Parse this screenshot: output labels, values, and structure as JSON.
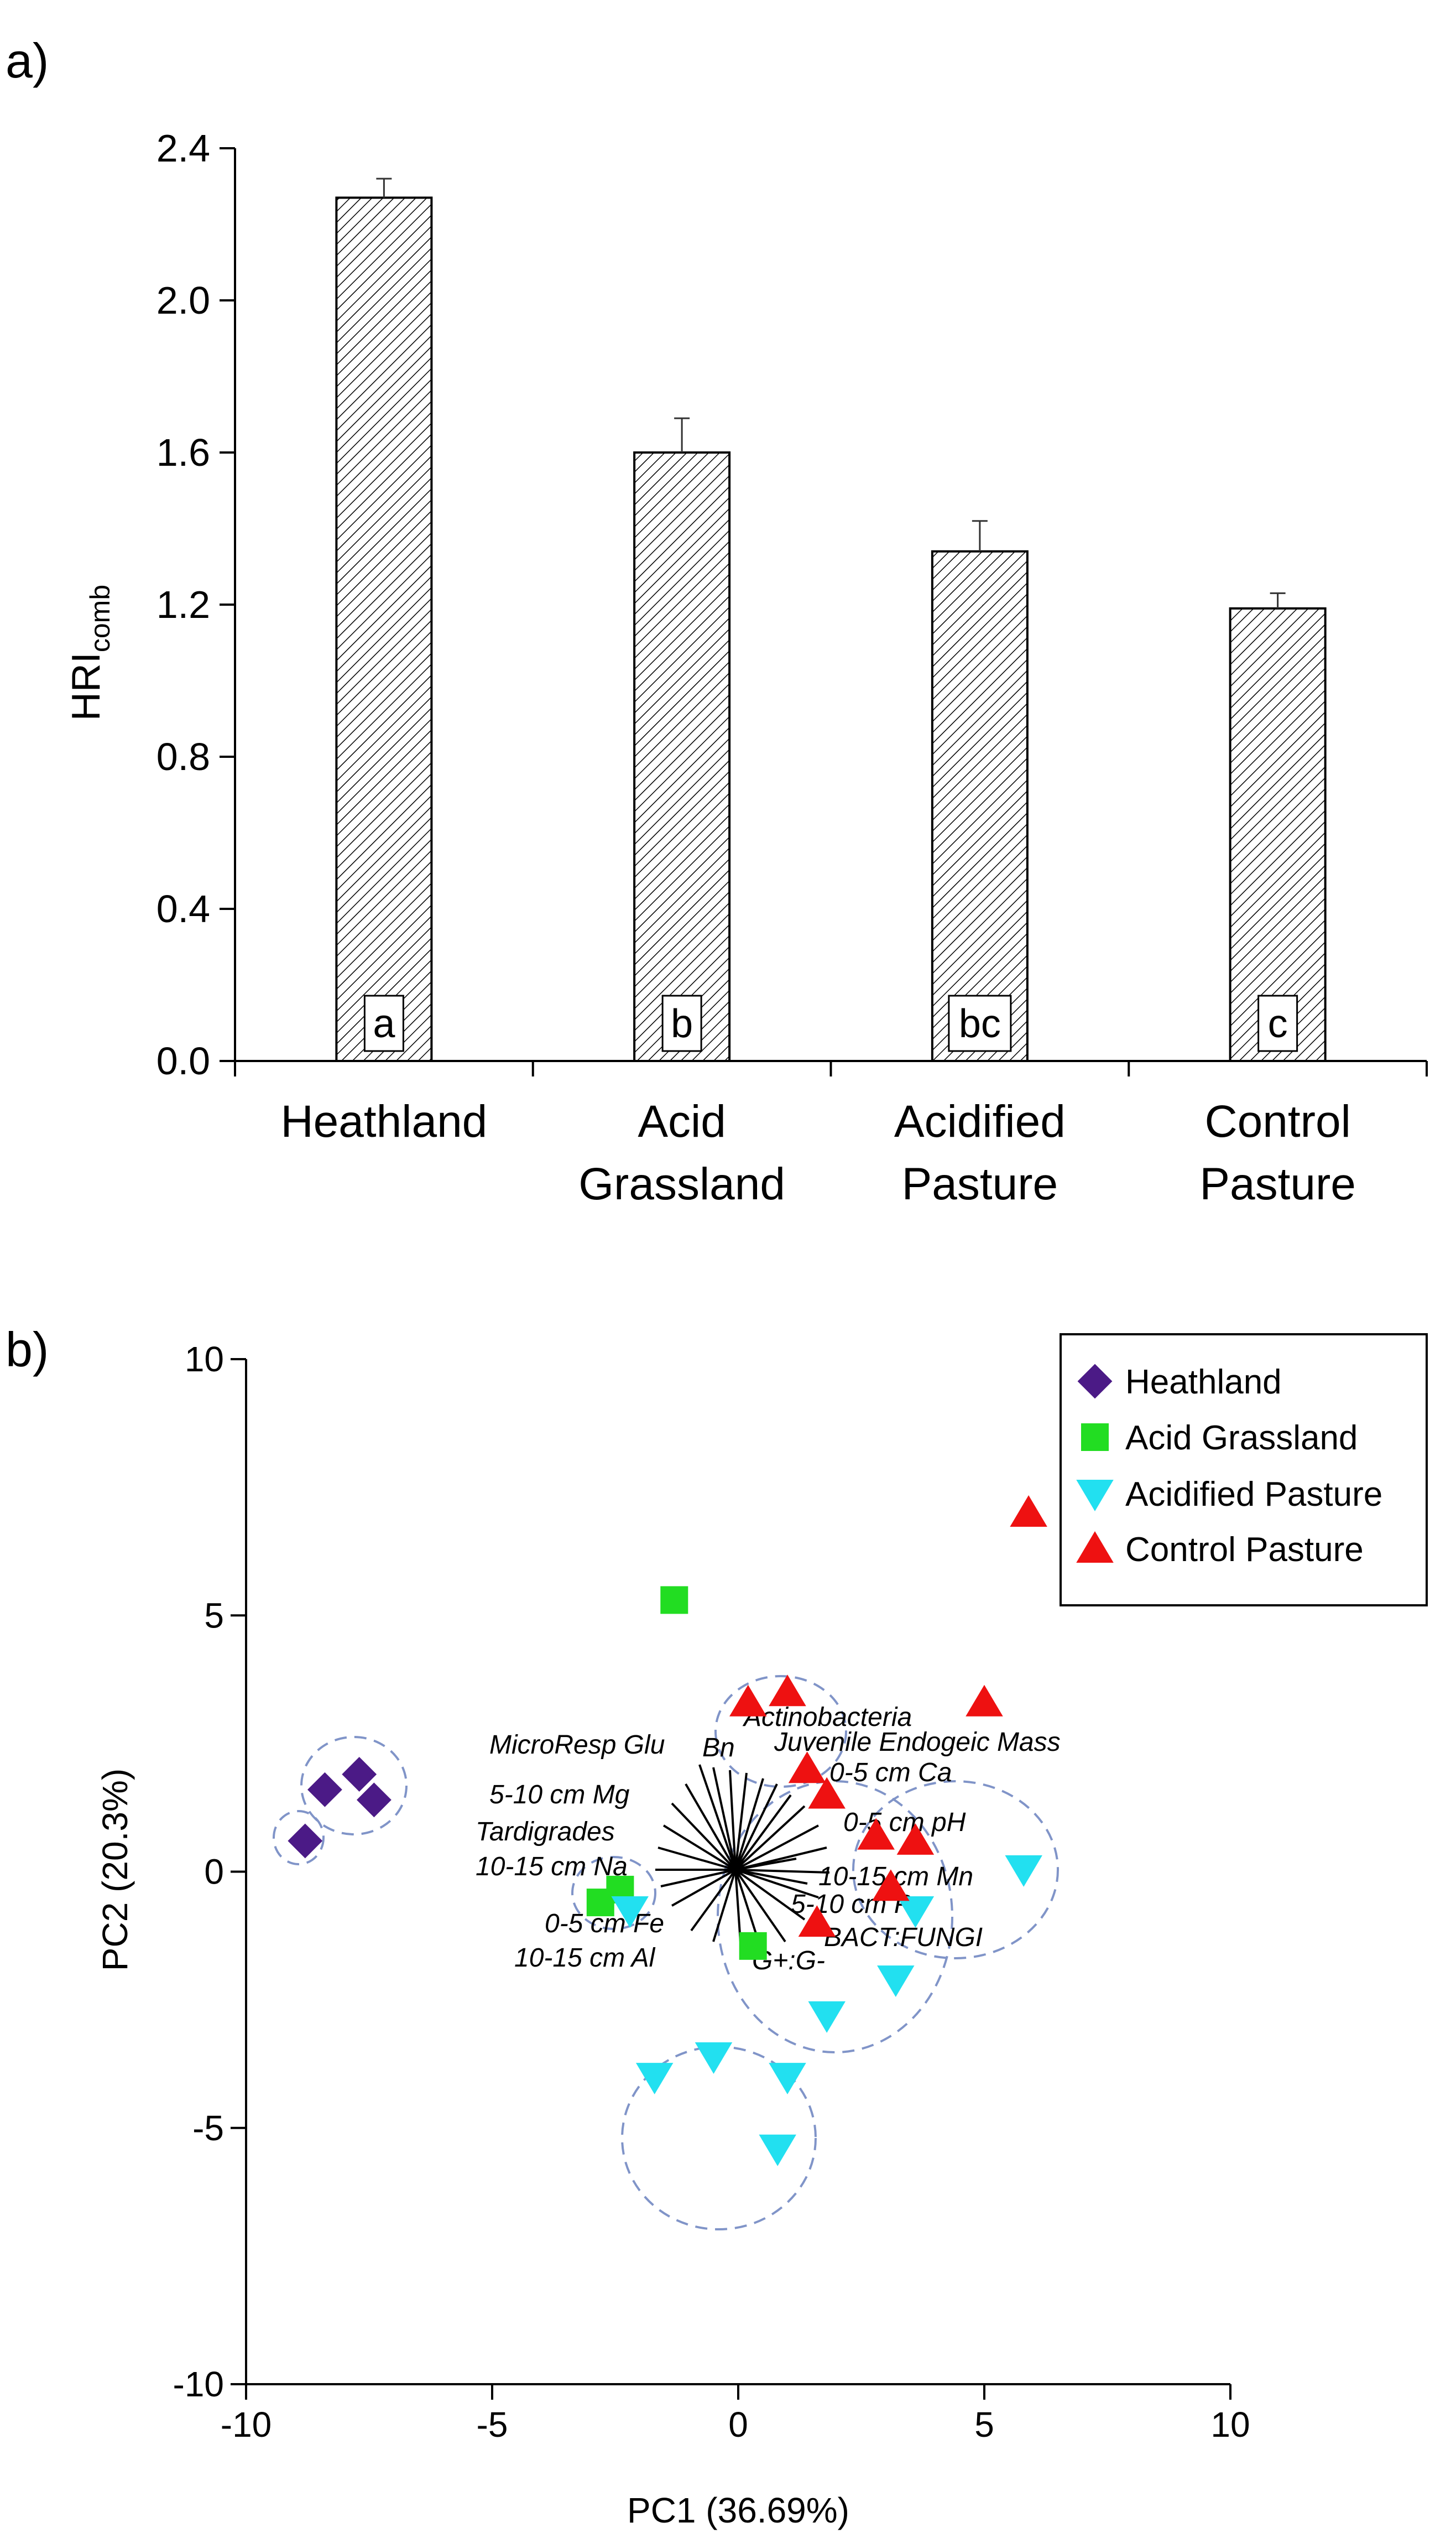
{
  "chart_data": [
    {
      "panel_label": "a)",
      "type": "bar",
      "ylabel_main": "HRI",
      "ylabel_sub": "comb",
      "ylim": [
        0,
        2.4
      ],
      "yticks": [
        "0.0",
        "0.4",
        "0.8",
        "1.2",
        "1.6",
        "2.0",
        "2.4"
      ],
      "ytick_values": [
        0,
        0.4,
        0.8,
        1.2,
        1.6,
        2.0,
        2.4
      ],
      "categories": [
        {
          "line1": "Heathland",
          "line2": ""
        },
        {
          "line1": "Acid",
          "line2": "Grassland"
        },
        {
          "line1": "Acidified",
          "line2": "Pasture"
        },
        {
          "line1": "Control",
          "line2": "Pasture"
        }
      ],
      "values": [
        2.27,
        1.6,
        1.34,
        1.19
      ],
      "errors": [
        0.05,
        0.09,
        0.08,
        0.04
      ],
      "letters": [
        "a",
        "b",
        "bc",
        "c"
      ],
      "bar_fill": "hatched"
    },
    {
      "panel_label": "b)",
      "type": "scatter",
      "xlabel": "PC1 (36.69%)",
      "ylabel": "PC2 (20.3%)",
      "xlim": [
        -10,
        10
      ],
      "ylim": [
        -10,
        10
      ],
      "xticks": [
        "-10",
        "-5",
        "0",
        "5",
        "10"
      ],
      "xtick_values": [
        -10,
        -5,
        0,
        5,
        10
      ],
      "yticks": [
        "-10",
        "-5",
        "0",
        "5",
        "10"
      ],
      "ytick_values": [
        -10,
        -5,
        0,
        5,
        10
      ],
      "legend_position": "top-right",
      "series": [
        {
          "name": "Heathland",
          "marker": "diamond",
          "color": "#4b1a86",
          "points": [
            [
              -8.4,
              1.6
            ],
            [
              -7.7,
              1.9
            ],
            [
              -7.4,
              1.4
            ],
            [
              -8.8,
              0.6
            ]
          ]
        },
        {
          "name": "Acid Grassland",
          "marker": "square",
          "color": "#22dd22",
          "points": [
            [
              -1.3,
              5.3
            ],
            [
              -2.4,
              -0.35
            ],
            [
              -2.8,
              -0.6
            ],
            [
              0.3,
              -1.45
            ]
          ]
        },
        {
          "name": "Acidified Pasture",
          "marker": "triangle-down",
          "color": "#22e0f0",
          "points": [
            [
              -2.2,
              -0.75
            ],
            [
              3.6,
              -0.75
            ],
            [
              5.8,
              0.05
            ],
            [
              3.2,
              -2.1
            ],
            [
              1.8,
              -2.8
            ],
            [
              -1.7,
              -4.0
            ],
            [
              -0.5,
              -3.6
            ],
            [
              1.0,
              -4.0
            ],
            [
              0.8,
              -5.4
            ]
          ]
        },
        {
          "name": "Control Pasture",
          "marker": "triangle-up",
          "color": "#ee1111",
          "points": [
            [
              5.9,
              7.0
            ],
            [
              5.0,
              3.3
            ],
            [
              0.2,
              3.3
            ],
            [
              1.0,
              3.5
            ],
            [
              1.4,
              2.0
            ],
            [
              1.8,
              1.5
            ],
            [
              2.8,
              0.7
            ],
            [
              3.6,
              0.6
            ],
            [
              3.1,
              -0.3
            ],
            [
              1.6,
              -1.0
            ]
          ]
        }
      ],
      "vector_labels": [
        "Actinobacteria",
        "Juvenile Endogeic Mass",
        "MicroResp Glu",
        "Bn",
        "0-5 cm Ca",
        "5-10 cm Mg",
        "0-5 cm pH",
        "Tardigrades",
        "10-15 cm Na",
        "10-15 cm Mn",
        "5-10 cm P",
        "0-5 cm Fe",
        "BACT:FUNGI",
        "10-15 cm Al",
        "G+:G-"
      ]
    }
  ],
  "colors": {
    "axis": "#000000",
    "ellipse": "#8094c8"
  }
}
